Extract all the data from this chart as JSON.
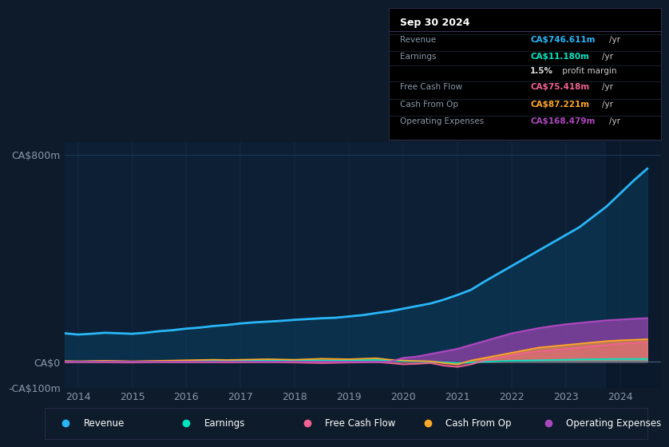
{
  "bg_color": "#0d1b2a",
  "plot_bg_color": "#0d1f35",
  "grid_color": "#1e3a55",
  "title_box_date": "Sep 30 2024",
  "box_rows": [
    {
      "label": "Revenue",
      "value": "CA$746.611m",
      "unit": "/yr",
      "value_color": "#29b6f6"
    },
    {
      "label": "Earnings",
      "value": "CA$11.180m",
      "unit": "/yr",
      "value_color": "#00e5c0"
    },
    {
      "label": "",
      "value": "1.5%",
      "unit": " profit margin",
      "value_color": "#dddddd"
    },
    {
      "label": "Free Cash Flow",
      "value": "CA$75.418m",
      "unit": "/yr",
      "value_color": "#f06292"
    },
    {
      "label": "Cash From Op",
      "value": "CA$87.221m",
      "unit": "/yr",
      "value_color": "#ffa726"
    },
    {
      "label": "Operating Expenses",
      "value": "CA$168.479m",
      "unit": "/yr",
      "value_color": "#ab47bc"
    }
  ],
  "years": [
    2013.75,
    2014.0,
    2014.25,
    2014.5,
    2014.75,
    2015.0,
    2015.25,
    2015.5,
    2015.75,
    2016.0,
    2016.25,
    2016.5,
    2016.75,
    2017.0,
    2017.25,
    2017.5,
    2017.75,
    2018.0,
    2018.25,
    2018.5,
    2018.75,
    2019.0,
    2019.25,
    2019.5,
    2019.75,
    2020.0,
    2020.25,
    2020.5,
    2020.75,
    2021.0,
    2021.25,
    2021.5,
    2021.75,
    2022.0,
    2022.25,
    2022.5,
    2022.75,
    2023.0,
    2023.25,
    2023.5,
    2023.75,
    2024.0,
    2024.25,
    2024.5
  ],
  "revenue": [
    110,
    105,
    108,
    112,
    110,
    108,
    112,
    118,
    122,
    128,
    132,
    138,
    142,
    148,
    152,
    155,
    158,
    162,
    165,
    168,
    170,
    175,
    180,
    188,
    195,
    205,
    215,
    225,
    240,
    258,
    278,
    310,
    340,
    370,
    400,
    430,
    460,
    490,
    520,
    560,
    600,
    650,
    700,
    746
  ],
  "earnings": [
    2,
    1.5,
    2,
    3,
    2,
    1,
    1.5,
    2,
    2.5,
    3,
    3.5,
    4,
    4,
    4.5,
    5,
    5,
    5.5,
    6,
    6,
    5,
    4,
    5,
    6,
    7,
    5,
    3,
    2,
    1,
    -2,
    -5,
    -3,
    0,
    2,
    4,
    5,
    6,
    7,
    8,
    9,
    10,
    10.5,
    11,
    11.2,
    11.18
  ],
  "free_cash_flow": [
    -2,
    -1,
    -1.5,
    -2,
    -2.5,
    -3,
    -2,
    -1,
    -1.5,
    -2,
    -1.5,
    -2,
    -2.5,
    -2,
    -1.5,
    -1,
    -2,
    -3,
    -4,
    -5,
    -4,
    -3,
    -2,
    -1,
    -5,
    -10,
    -8,
    -5,
    -15,
    -20,
    -10,
    5,
    15,
    25,
    35,
    40,
    45,
    50,
    55,
    60,
    65,
    70,
    73,
    75.4
  ],
  "cash_from_op": [
    3,
    2,
    3,
    4,
    3,
    2,
    3,
    4,
    5,
    6,
    7,
    8,
    7,
    8,
    9,
    10,
    9,
    8,
    10,
    12,
    11,
    10,
    12,
    14,
    8,
    5,
    3,
    2,
    -5,
    -10,
    5,
    15,
    25,
    35,
    45,
    55,
    60,
    65,
    70,
    75,
    80,
    83,
    85,
    87.2
  ],
  "operating_expenses": [
    0,
    0,
    0,
    0,
    0,
    0,
    0,
    0,
    0,
    0,
    0,
    0,
    0,
    0,
    0,
    0,
    0,
    0,
    0,
    0,
    0,
    0,
    0,
    0,
    0,
    15,
    20,
    30,
    40,
    50,
    65,
    80,
    95,
    110,
    120,
    130,
    138,
    145,
    150,
    155,
    160,
    163,
    166,
    168.5
  ],
  "ylim": [
    -100,
    850
  ],
  "yticks": [
    -100,
    0,
    800
  ],
  "ytick_labels": [
    "-CA$100m",
    "CA$0",
    "CA$800m"
  ],
  "xticks": [
    2014,
    2015,
    2016,
    2017,
    2018,
    2019,
    2020,
    2021,
    2022,
    2023,
    2024
  ],
  "legend": [
    {
      "label": "Revenue",
      "color": "#29b6f6"
    },
    {
      "label": "Earnings",
      "color": "#00e5c0"
    },
    {
      "label": "Free Cash Flow",
      "color": "#f06292"
    },
    {
      "label": "Cash From Op",
      "color": "#ffa726"
    },
    {
      "label": "Operating Expenses",
      "color": "#ab47bc"
    }
  ],
  "revenue_color": "#29b6f6",
  "revenue_fill_color": "#0a4a6e",
  "earnings_color": "#00e5c0",
  "fcf_color": "#f06292",
  "cashop_color": "#ffa726",
  "opex_color": "#ab47bc"
}
